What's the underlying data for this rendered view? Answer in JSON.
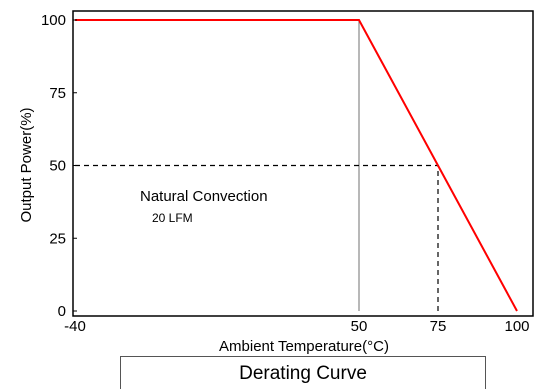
{
  "chart_data": {
    "type": "line",
    "title": "Derating Curve",
    "xlabel": "Ambient Temperature(°C)",
    "ylabel": "Output Power(%)",
    "xlim": [
      -40,
      100
    ],
    "ylim": [
      0,
      100
    ],
    "x_ticks": [
      -40,
      50,
      75,
      100
    ],
    "y_ticks": [
      0,
      25,
      50,
      75,
      100
    ],
    "grid": false,
    "series": [
      {
        "color": "#ff0000",
        "points": [
          [
            -40,
            100
          ],
          [
            50,
            100
          ],
          [
            75,
            50
          ],
          [
            100,
            0
          ]
        ]
      }
    ],
    "reference_lines": [
      {
        "style": "solid",
        "color": "#888888",
        "points": [
          [
            50,
            0
          ],
          [
            50,
            100
          ]
        ]
      },
      {
        "style": "dashed",
        "color": "#000000",
        "points": [
          [
            -40,
            50
          ],
          [
            75,
            50
          ]
        ]
      },
      {
        "style": "dashed",
        "color": "#000000",
        "points": [
          [
            75,
            0
          ],
          [
            75,
            50
          ]
        ]
      }
    ],
    "annotations": [
      {
        "text": "Natural Convection",
        "role": "main"
      },
      {
        "text": "20 LFM",
        "role": "sub"
      }
    ]
  }
}
